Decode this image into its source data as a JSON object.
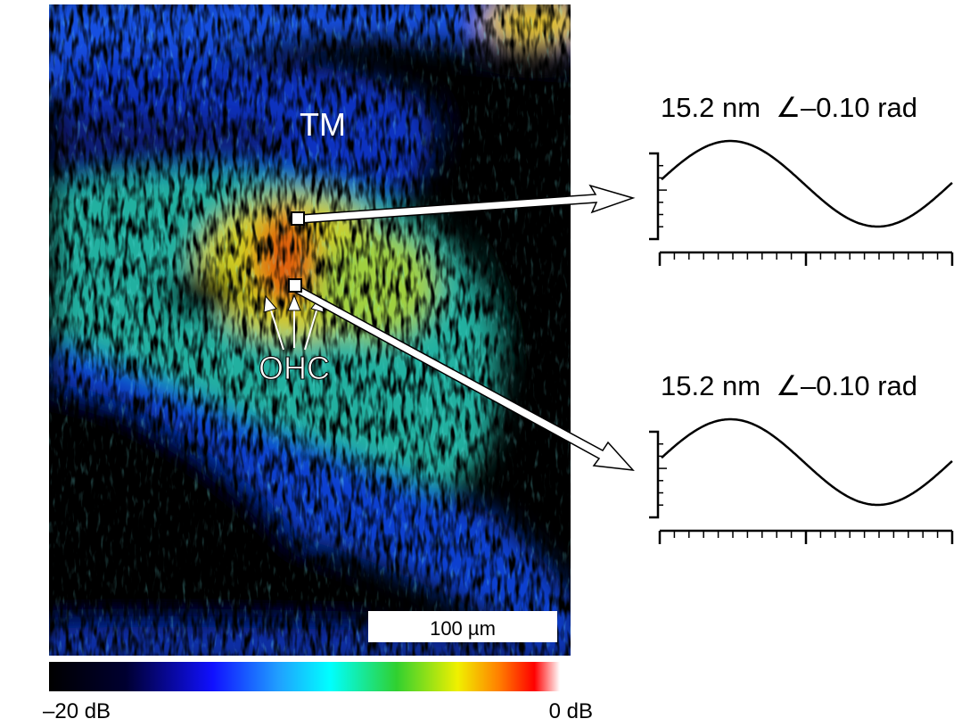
{
  "image": {
    "labels": {
      "tm": "TM",
      "ohc": "OHC"
    },
    "scale_bar": "100 µm"
  },
  "colorbar": {
    "min_label": "–20 dB",
    "max_label": "0 dB"
  },
  "traces": [
    {
      "label": "15.2 nm  ∠–0.10 rad"
    },
    {
      "label": "15.2 nm  ∠–0.10 rad"
    }
  ]
}
